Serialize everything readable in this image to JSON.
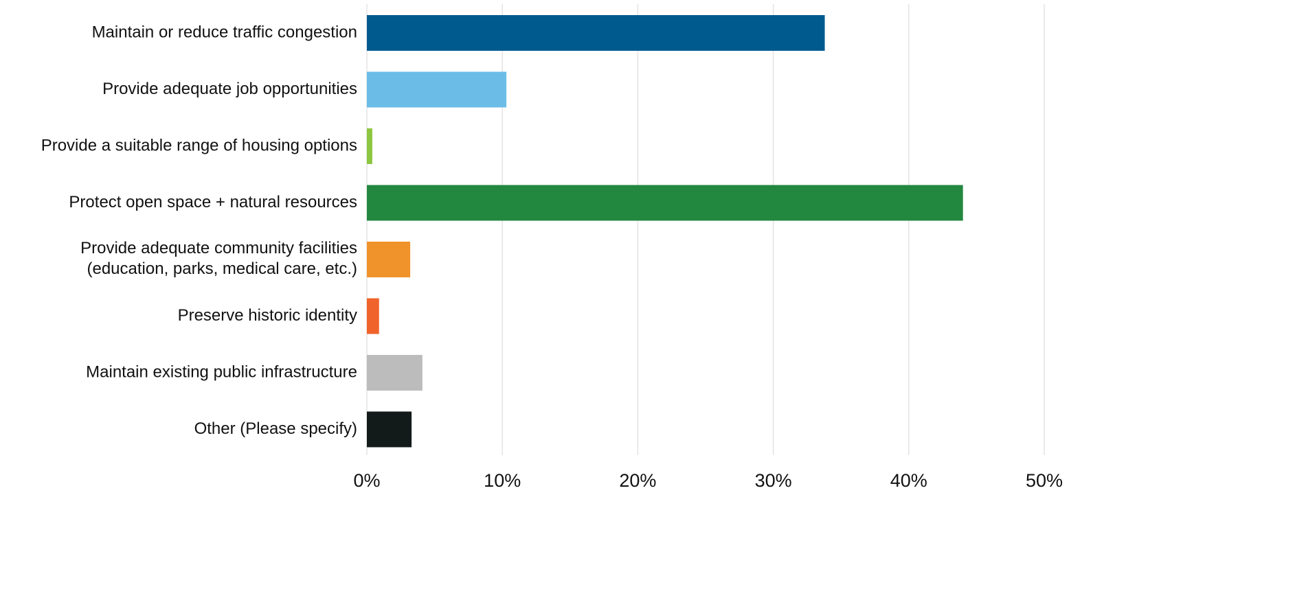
{
  "chart_data": {
    "type": "hbar",
    "categories": [
      "Maintain or reduce traffic congestion",
      "Provide adequate job opportunities",
      "Provide a suitable range of housing options",
      "Protect open space + natural resources",
      "Provide adequate community facilities\n(education, parks, medical care, etc.)",
      "Preserve historic identity",
      "Maintain existing public infrastructure",
      "Other (Please specify)"
    ],
    "values": [
      33.8,
      10.3,
      0.4,
      44.0,
      3.2,
      0.9,
      4.1,
      3.3
    ],
    "colors": [
      "#005a8e",
      "#6bbde8",
      "#8dc63f",
      "#23883f",
      "#f0932a",
      "#f0632a",
      "#bcbcbc",
      "#121b1a"
    ],
    "xlim": [
      0,
      50
    ],
    "xticks": [
      {
        "value": 0,
        "label": "0%"
      },
      {
        "value": 10,
        "label": "10%"
      },
      {
        "value": 20,
        "label": "20%"
      },
      {
        "value": 30,
        "label": "30%"
      },
      {
        "value": 40,
        "label": "40%"
      },
      {
        "value": 50,
        "label": "50%"
      }
    ],
    "grid": true
  }
}
